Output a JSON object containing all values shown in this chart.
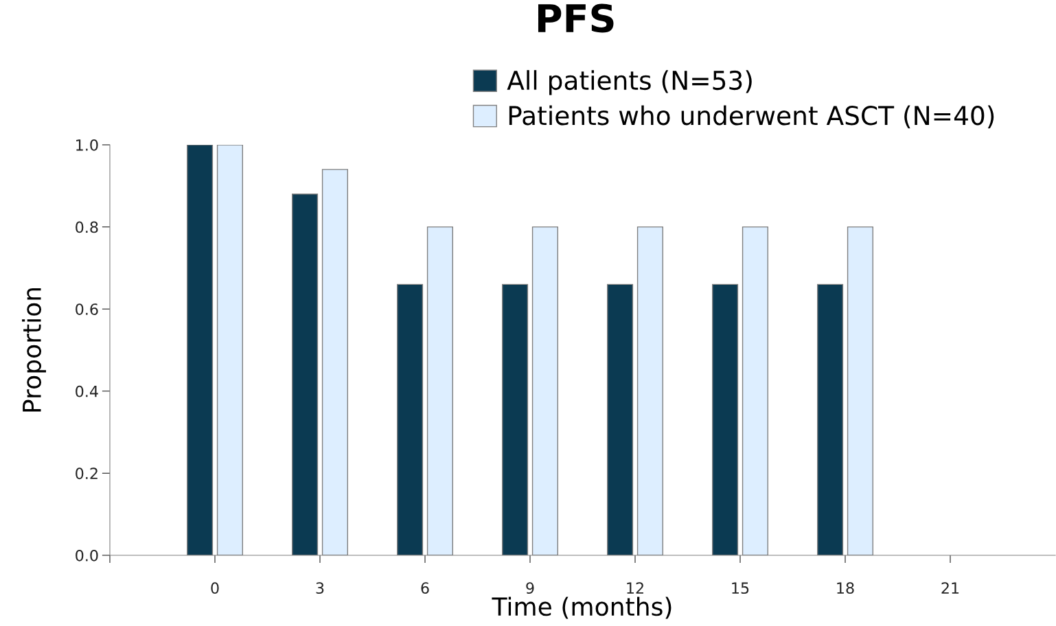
{
  "chart_data": {
    "type": "bar",
    "title": "PFS",
    "xlabel": "Time (months)",
    "ylabel": "Proportion",
    "x": [
      0,
      3,
      6,
      9,
      12,
      15,
      18
    ],
    "series": [
      {
        "name": "All patients (N=53)",
        "color": "#0b3a52",
        "values": [
          1.0,
          0.88,
          0.66,
          0.66,
          0.66,
          0.66,
          0.66
        ]
      },
      {
        "name": "Patients who underwent ASCT (N=40)",
        "color": "#ddeeff",
        "values": [
          1.0,
          0.94,
          0.8,
          0.8,
          0.8,
          0.8,
          0.8
        ]
      }
    ],
    "xlim": [
      -3,
      24
    ],
    "xticks": [
      {
        "value": -3,
        "label": null
      },
      0,
      3,
      6,
      9,
      12,
      15,
      18,
      21
    ],
    "ylim": [
      0,
      1.0
    ],
    "yticks": [
      {
        "value": 0,
        "label": "0.0"
      },
      {
        "value": 0.2,
        "label": "0.2"
      },
      {
        "value": 0.4,
        "label": "0.4"
      },
      {
        "value": 0.6,
        "label": "0.6"
      },
      {
        "value": 0.8,
        "label": "0.8"
      },
      {
        "value": 1.0,
        "label": "1.0"
      }
    ],
    "grid": false,
    "legend": "top right"
  }
}
